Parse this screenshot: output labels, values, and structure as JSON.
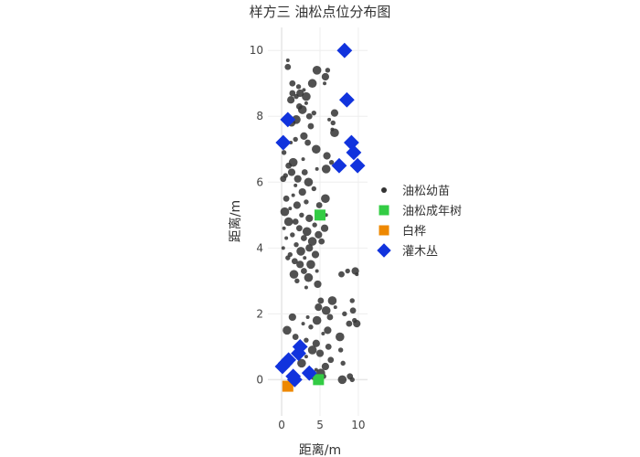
{
  "chart_data": {
    "type": "scatter",
    "title": "样方三 油松点位分布图",
    "xlabel": "距离/m",
    "ylabel": "距离/m",
    "xlim": [
      -1.8,
      11.2
    ],
    "ylim": [
      -1.1,
      10.7
    ],
    "xticks": [
      0,
      5,
      10
    ],
    "yticks": [
      0,
      2,
      4,
      6,
      8,
      10
    ],
    "grid": true,
    "legend_position": "right",
    "colors": {
      "seedling": "#333333",
      "adult": "#33cc44",
      "white": "#ee8800",
      "shrub": "#1133dd"
    },
    "series": [
      {
        "name": "油松幼苗",
        "marker": "circle",
        "points": [
          [
            0.8,
            9.7
          ],
          [
            0.8,
            9.5
          ],
          [
            4.6,
            9.4
          ],
          [
            6.0,
            9.4
          ],
          [
            5.7,
            9.2
          ],
          [
            5.6,
            9.0
          ],
          [
            1.4,
            9.0
          ],
          [
            4.0,
            9.0
          ],
          [
            2.2,
            8.9
          ],
          [
            2.4,
            8.7
          ],
          [
            2.9,
            8.8
          ],
          [
            1.4,
            8.7
          ],
          [
            3.2,
            8.6
          ],
          [
            1.9,
            8.6
          ],
          [
            1.2,
            8.5
          ],
          [
            3.2,
            8.4
          ],
          [
            2.3,
            8.3
          ],
          [
            2.7,
            8.2
          ],
          [
            4.2,
            8.1
          ],
          [
            6.9,
            8.1
          ],
          [
            6.2,
            7.9
          ],
          [
            3.6,
            8.0
          ],
          [
            1.9,
            7.9
          ],
          [
            6.7,
            7.8
          ],
          [
            1.3,
            7.8
          ],
          [
            6.6,
            7.6
          ],
          [
            3.8,
            7.7
          ],
          [
            6.9,
            7.5
          ],
          [
            1.8,
            7.3
          ],
          [
            2.9,
            7.4
          ],
          [
            1.2,
            7.2
          ],
          [
            3.4,
            7.2
          ],
          [
            4.5,
            7.0
          ],
          [
            0.3,
            6.9
          ],
          [
            5.9,
            6.8
          ],
          [
            2.8,
            6.7
          ],
          [
            0.9,
            6.5
          ],
          [
            1.5,
            6.6
          ],
          [
            6.5,
            6.6
          ],
          [
            1.3,
            6.3
          ],
          [
            4.6,
            6.4
          ],
          [
            3.0,
            6.3
          ],
          [
            5.8,
            6.4
          ],
          [
            0.5,
            6.2
          ],
          [
            2.1,
            6.1
          ],
          [
            1.8,
            5.9
          ],
          [
            0.2,
            6.1
          ],
          [
            3.5,
            6.0
          ],
          [
            4.2,
            5.8
          ],
          [
            2.7,
            5.7
          ],
          [
            1.5,
            5.6
          ],
          [
            0.6,
            5.5
          ],
          [
            5.7,
            5.5
          ],
          [
            3.2,
            5.4
          ],
          [
            2.0,
            5.3
          ],
          [
            1.1,
            5.2
          ],
          [
            4.9,
            5.3
          ],
          [
            0.4,
            5.1
          ],
          [
            2.6,
            5.0
          ],
          [
            3.6,
            4.9
          ],
          [
            5.8,
            5.0
          ],
          [
            1.8,
            4.8
          ],
          [
            0.9,
            4.8
          ],
          [
            4.3,
            4.7
          ],
          [
            5.6,
            4.6
          ],
          [
            0.3,
            4.6
          ],
          [
            2.3,
            4.6
          ],
          [
            3.3,
            4.5
          ],
          [
            1.4,
            4.4
          ],
          [
            4.8,
            4.4
          ],
          [
            0.6,
            4.3
          ],
          [
            2.9,
            4.3
          ],
          [
            4.0,
            4.2
          ],
          [
            1.9,
            4.1
          ],
          [
            3.6,
            4.0
          ],
          [
            0.2,
            4.0
          ],
          [
            5.2,
            4.2
          ],
          [
            2.5,
            3.9
          ],
          [
            1.1,
            3.8
          ],
          [
            4.4,
            3.8
          ],
          [
            3.0,
            3.7
          ],
          [
            1.7,
            3.6
          ],
          [
            3.8,
            3.5
          ],
          [
            0.8,
            3.7
          ],
          [
            2.4,
            3.5
          ],
          [
            4.6,
            3.3
          ],
          [
            2.9,
            3.3
          ],
          [
            1.6,
            3.2
          ],
          [
            8.6,
            3.3
          ],
          [
            9.6,
            3.3
          ],
          [
            9.8,
            3.2
          ],
          [
            7.8,
            3.2
          ],
          [
            3.5,
            3.1
          ],
          [
            2.0,
            3.0
          ],
          [
            4.7,
            2.9
          ],
          [
            3.2,
            2.8
          ],
          [
            5.1,
            2.4
          ],
          [
            6.6,
            2.4
          ],
          [
            9.2,
            2.4
          ],
          [
            4.8,
            2.2
          ],
          [
            7.0,
            2.2
          ],
          [
            9.3,
            2.1
          ],
          [
            5.8,
            2.1
          ],
          [
            8.2,
            2.0
          ],
          [
            1.4,
            1.9
          ],
          [
            3.4,
            1.9
          ],
          [
            6.3,
            1.9
          ],
          [
            4.6,
            1.8
          ],
          [
            9.5,
            1.8
          ],
          [
            9.8,
            1.7
          ],
          [
            2.8,
            1.7
          ],
          [
            8.8,
            1.7
          ],
          [
            0.7,
            1.5
          ],
          [
            3.8,
            1.6
          ],
          [
            6.0,
            1.5
          ],
          [
            5.4,
            1.4
          ],
          [
            1.8,
            1.3
          ],
          [
            7.6,
            1.3
          ],
          [
            3.2,
            1.2
          ],
          [
            4.5,
            1.1
          ],
          [
            2.2,
            1.0
          ],
          [
            6.1,
            1.0
          ],
          [
            4.0,
            0.9
          ],
          [
            7.7,
            0.9
          ],
          [
            5.0,
            0.8
          ],
          [
            3.2,
            0.7
          ],
          [
            6.4,
            0.6
          ],
          [
            2.6,
            0.5
          ],
          [
            8.0,
            0.5
          ],
          [
            5.7,
            0.4
          ],
          [
            4.5,
            0.3
          ],
          [
            3.6,
            0.2
          ],
          [
            5.1,
            0.2
          ],
          [
            5.5,
            0.1
          ],
          [
            4.2,
            0.1
          ],
          [
            1.6,
            0.1
          ],
          [
            8.9,
            0.1
          ],
          [
            7.9,
            0.0
          ],
          [
            9.2,
            0.0
          ]
        ]
      },
      {
        "name": "油松成年树",
        "marker": "square",
        "points": [
          [
            5.0,
            5.0
          ],
          [
            4.8,
            0.0
          ]
        ]
      },
      {
        "name": "白桦",
        "marker": "square",
        "points": [
          [
            0.8,
            -0.2
          ]
        ]
      },
      {
        "name": "灌木丛",
        "marker": "diamond",
        "points": [
          [
            8.2,
            10.0
          ],
          [
            8.5,
            8.5
          ],
          [
            0.8,
            7.9
          ],
          [
            0.2,
            7.2
          ],
          [
            9.1,
            7.2
          ],
          [
            9.4,
            6.9
          ],
          [
            7.5,
            6.5
          ],
          [
            9.9,
            6.5
          ],
          [
            2.4,
            1.0
          ],
          [
            2.2,
            0.8
          ],
          [
            0.9,
            0.6
          ],
          [
            0.5,
            0.5
          ],
          [
            0.1,
            0.4
          ],
          [
            3.6,
            0.2
          ],
          [
            1.5,
            0.1
          ],
          [
            1.7,
            0.0
          ]
        ]
      }
    ]
  }
}
